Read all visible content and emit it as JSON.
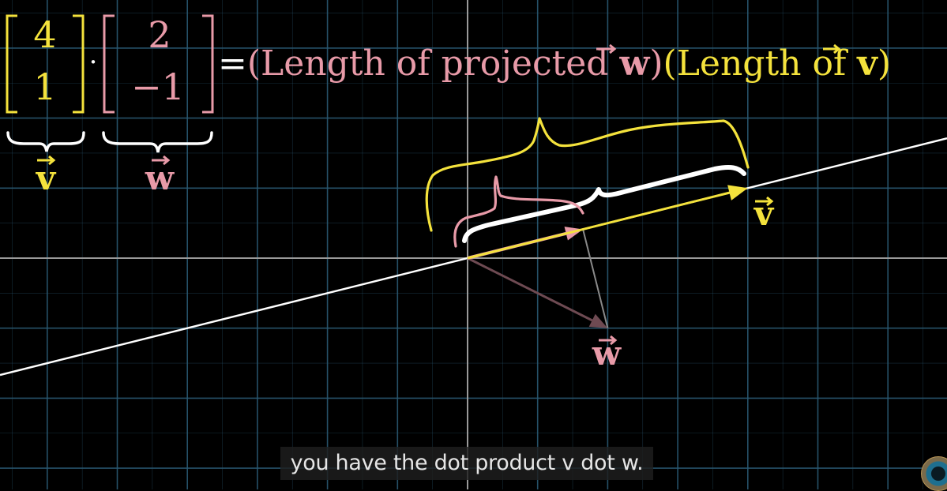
{
  "equation": {
    "v_vector": [
      "4",
      "1"
    ],
    "w_vector": [
      "2",
      "−1"
    ],
    "dot": "·",
    "equals": "=",
    "rhs_part1_open": "(Length of projected ",
    "rhs_part1_vec": "w",
    "rhs_part1_close": ")",
    "rhs_part2_open": "(Length of ",
    "rhs_part2_vec": "v",
    "rhs_part2_close": ")"
  },
  "labels": {
    "v_under_bracket": "v",
    "w_under_bracket": "w",
    "v_arrow_label": "v",
    "w_arrow_label": "w",
    "vector_arrow_glyph": "⃗"
  },
  "caption": "you have the dot product v dot w.",
  "colors": {
    "background": "#000000",
    "grid": "#2a5a73",
    "axis": "#9a9a9a",
    "v_yellow": "#f4e23c",
    "w_pink": "#e89aa8",
    "w_arrow": "#6e4a52",
    "projection_line": "#ffffff",
    "brace_white": "#ffffff",
    "brace_yellow": "#f4e23c",
    "brace_pink": "#e89aa8"
  },
  "vectors": {
    "v": [
      4,
      1
    ],
    "w": [
      2,
      -1
    ],
    "projection_of_w_onto_v": [
      1.647,
      0.412
    ]
  }
}
